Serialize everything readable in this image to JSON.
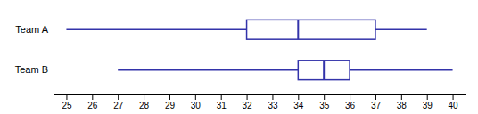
{
  "chart_data": {
    "type": "box",
    "orientation": "horizontal",
    "categories": [
      "Team A",
      "Team B"
    ],
    "values": [
      {
        "min": 25,
        "q1": 32,
        "median": 34,
        "q3": 37,
        "max": 39
      },
      {
        "min": 27,
        "q1": 34,
        "median": 35,
        "q3": 36,
        "max": 40
      }
    ],
    "color": "#3333aa",
    "xlim": [
      24.5,
      40.5
    ],
    "xticks": [
      25,
      26,
      27,
      28,
      29,
      30,
      31,
      32,
      33,
      34,
      35,
      36,
      37,
      38,
      39,
      40
    ]
  }
}
